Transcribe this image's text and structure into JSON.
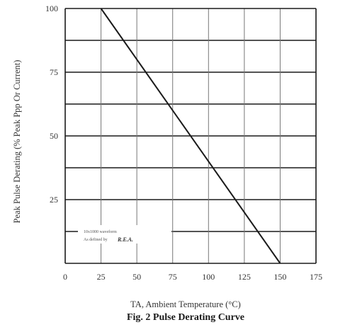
{
  "chart_data": {
    "type": "line",
    "title": "Fig. 2  Pulse Derating Curve",
    "xlabel": "TA, Ambient Temperature (°C)",
    "ylabel": "Peak Pulse Derating (% Peak Ppp Or Current)",
    "x_ticks": [
      "0",
      "25",
      "50",
      "75",
      "100",
      "125",
      "150",
      "175"
    ],
    "y_ticks": [
      "25",
      "50",
      "75",
      "100"
    ],
    "xlim": [
      0,
      175
    ],
    "ylim": [
      0,
      100
    ],
    "grid": true,
    "series": [
      {
        "x": [
          25,
          150
        ],
        "y": [
          100,
          0
        ]
      }
    ],
    "annotation": [
      "10x1000 waveform",
      "As defined by",
      "R.E.A."
    ]
  }
}
